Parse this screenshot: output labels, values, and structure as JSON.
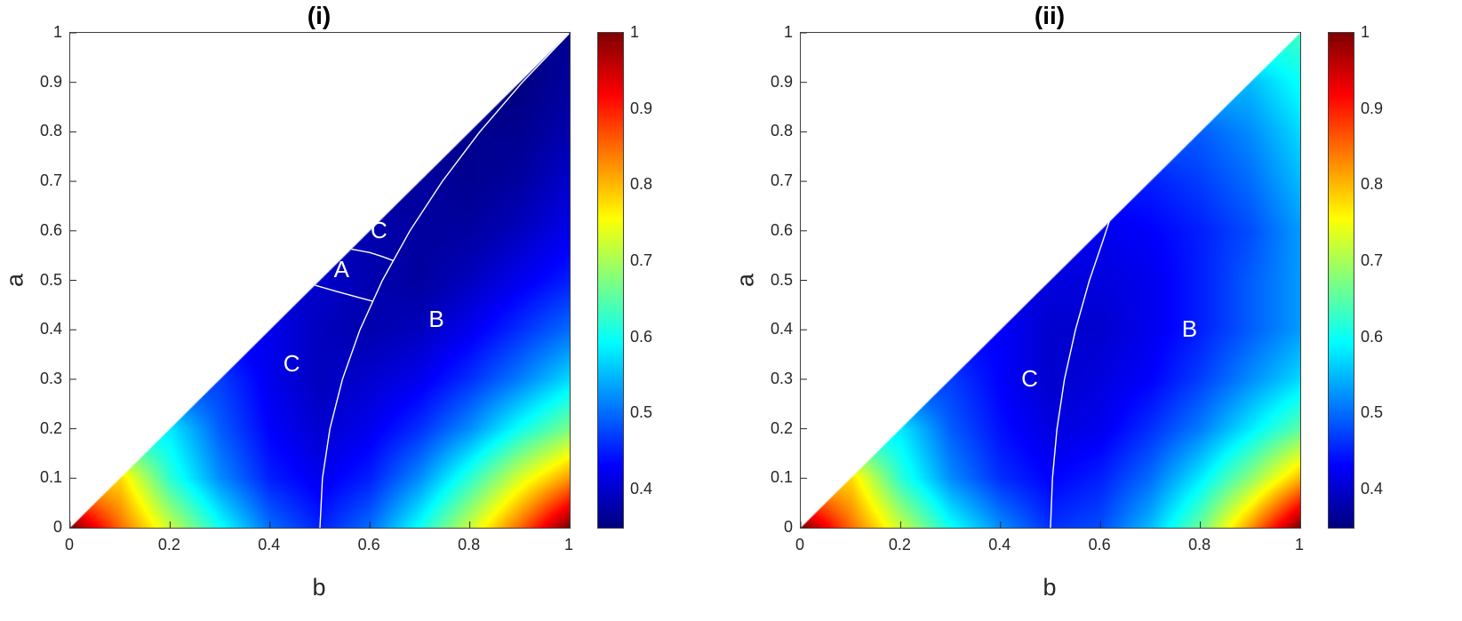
{
  "styles": {
    "background": "#ffffff",
    "curve_color": "#ffffff",
    "region_label_color": "#ffffff",
    "tick_color": "#262626",
    "colormap": "jet"
  },
  "chart_data": [
    {
      "type": "heatmap",
      "title": "(i)",
      "xlabel": "b",
      "ylabel": "a",
      "xlim": [
        0,
        1
      ],
      "ylim": [
        0,
        1
      ],
      "clim": [
        0.35,
        1
      ],
      "colormap": "jet",
      "domain": "lower-right triangle where b >= a",
      "grid_b": [
        0,
        0.1,
        0.2,
        0.3,
        0.4,
        0.5,
        0.6,
        0.7,
        0.8,
        0.9,
        1
      ],
      "grid_a": [
        0,
        0.1,
        0.2,
        0.3,
        0.4,
        0.5,
        0.6,
        0.7,
        0.8,
        0.9,
        1
      ],
      "values": [
        [
          1.0,
          0.85,
          0.72,
          0.6,
          0.5,
          0.45,
          0.5,
          0.6,
          0.72,
          0.85,
          1.0
        ],
        [
          null,
          0.78,
          0.62,
          0.52,
          0.45,
          0.42,
          0.45,
          0.52,
          0.62,
          0.73,
          0.82
        ],
        [
          null,
          null,
          0.58,
          0.49,
          0.43,
          0.4,
          0.42,
          0.46,
          0.52,
          0.6,
          0.67
        ],
        [
          null,
          null,
          null,
          0.47,
          0.42,
          0.39,
          0.4,
          0.42,
          0.46,
          0.51,
          0.57
        ],
        [
          null,
          null,
          null,
          null,
          0.42,
          0.39,
          0.38,
          0.39,
          0.42,
          0.46,
          0.5
        ],
        [
          null,
          null,
          null,
          null,
          null,
          0.4,
          0.38,
          0.37,
          0.39,
          0.42,
          0.45
        ],
        [
          null,
          null,
          null,
          null,
          null,
          null,
          0.38,
          0.37,
          0.37,
          0.39,
          0.42
        ],
        [
          null,
          null,
          null,
          null,
          null,
          null,
          null,
          0.37,
          0.36,
          0.37,
          0.4
        ],
        [
          null,
          null,
          null,
          null,
          null,
          null,
          null,
          null,
          0.36,
          0.36,
          0.38
        ],
        [
          null,
          null,
          null,
          null,
          null,
          null,
          null,
          null,
          null,
          0.35,
          0.37
        ],
        [
          null,
          null,
          null,
          null,
          null,
          null,
          null,
          null,
          null,
          null,
          0.36
        ]
      ],
      "x_ticks": [
        "0",
        "0.2",
        "0.4",
        "0.6",
        "0.8",
        "1"
      ],
      "y_ticks": [
        "0",
        "0.1",
        "0.2",
        "0.3",
        "0.4",
        "0.5",
        "0.6",
        "0.7",
        "0.8",
        "0.9",
        "1"
      ],
      "colorbar_ticks": [
        "1",
        "0.9",
        "0.8",
        "0.7",
        "0.6",
        "0.5",
        "0.4"
      ],
      "region_labels": [
        {
          "text": "C",
          "b": 0.62,
          "a": 0.6
        },
        {
          "text": "A",
          "b": 0.545,
          "a": 0.52
        },
        {
          "text": "B",
          "b": 0.735,
          "a": 0.42
        },
        {
          "text": "C",
          "b": 0.445,
          "a": 0.33
        }
      ],
      "curves": [
        [
          [
            0.5,
            0
          ],
          [
            0.505,
            0.1
          ],
          [
            0.52,
            0.2
          ],
          [
            0.545,
            0.3
          ],
          [
            0.58,
            0.4
          ],
          [
            0.625,
            0.5
          ],
          [
            0.68,
            0.6
          ],
          [
            0.745,
            0.7
          ],
          [
            0.82,
            0.8
          ],
          [
            0.905,
            0.9
          ],
          [
            0.998,
            0.998
          ]
        ],
        [
          [
            0.49,
            0.49
          ],
          [
            0.535,
            0.477
          ],
          [
            0.575,
            0.466
          ],
          [
            0.605,
            0.458
          ]
        ],
        [
          [
            0.563,
            0.563
          ],
          [
            0.6,
            0.556
          ],
          [
            0.625,
            0.548
          ],
          [
            0.646,
            0.54
          ]
        ]
      ]
    },
    {
      "type": "heatmap",
      "title": "(ii)",
      "xlabel": "b",
      "ylabel": "a",
      "xlim": [
        0,
        1
      ],
      "ylim": [
        0,
        1
      ],
      "clim": [
        0.35,
        1
      ],
      "colormap": "jet",
      "domain": "lower-right triangle where b >= a",
      "grid_b": [
        0,
        0.1,
        0.2,
        0.3,
        0.4,
        0.5,
        0.6,
        0.7,
        0.8,
        0.9,
        1
      ],
      "grid_a": [
        0,
        0.1,
        0.2,
        0.3,
        0.4,
        0.5,
        0.6,
        0.7,
        0.8,
        0.9,
        1
      ],
      "values": [
        [
          1.0,
          0.85,
          0.72,
          0.6,
          0.52,
          0.46,
          0.48,
          0.55,
          0.66,
          0.82,
          1.0
        ],
        [
          null,
          0.78,
          0.62,
          0.52,
          0.46,
          0.43,
          0.45,
          0.5,
          0.58,
          0.68,
          0.8
        ],
        [
          null,
          null,
          0.58,
          0.49,
          0.44,
          0.41,
          0.42,
          0.46,
          0.51,
          0.58,
          0.65
        ],
        [
          null,
          null,
          null,
          0.47,
          0.43,
          0.4,
          0.41,
          0.43,
          0.47,
          0.52,
          0.57
        ],
        [
          null,
          null,
          null,
          null,
          0.43,
          0.4,
          0.4,
          0.42,
          0.45,
          0.49,
          0.53
        ],
        [
          null,
          null,
          null,
          null,
          null,
          0.41,
          0.41,
          0.42,
          0.45,
          0.49,
          0.53
        ],
        [
          null,
          null,
          null,
          null,
          null,
          null,
          0.42,
          0.43,
          0.45,
          0.48,
          0.53
        ],
        [
          null,
          null,
          null,
          null,
          null,
          null,
          null,
          0.45,
          0.47,
          0.5,
          0.55
        ],
        [
          null,
          null,
          null,
          null,
          null,
          null,
          null,
          null,
          0.49,
          0.52,
          0.57
        ],
        [
          null,
          null,
          null,
          null,
          null,
          null,
          null,
          null,
          null,
          0.55,
          0.6
        ],
        [
          null,
          null,
          null,
          null,
          null,
          null,
          null,
          null,
          null,
          null,
          0.63
        ]
      ],
      "x_ticks": [
        "0",
        "0.2",
        "0.4",
        "0.6",
        "0.8",
        "1"
      ],
      "y_ticks": [
        "0",
        "0.1",
        "0.2",
        "0.3",
        "0.4",
        "0.5",
        "0.6",
        "0.7",
        "0.8",
        "0.9",
        "1"
      ],
      "colorbar_ticks": [
        "1",
        "0.9",
        "0.8",
        "0.7",
        "0.6",
        "0.5",
        "0.4"
      ],
      "region_labels": [
        {
          "text": "C",
          "b": 0.46,
          "a": 0.3
        },
        {
          "text": "B",
          "b": 0.78,
          "a": 0.4
        }
      ],
      "curves": [
        [
          [
            0.5,
            0
          ],
          [
            0.504,
            0.1
          ],
          [
            0.513,
            0.2
          ],
          [
            0.528,
            0.3
          ],
          [
            0.55,
            0.4
          ],
          [
            0.578,
            0.5
          ],
          [
            0.605,
            0.58
          ],
          [
            0.618,
            0.62
          ]
        ]
      ]
    }
  ]
}
